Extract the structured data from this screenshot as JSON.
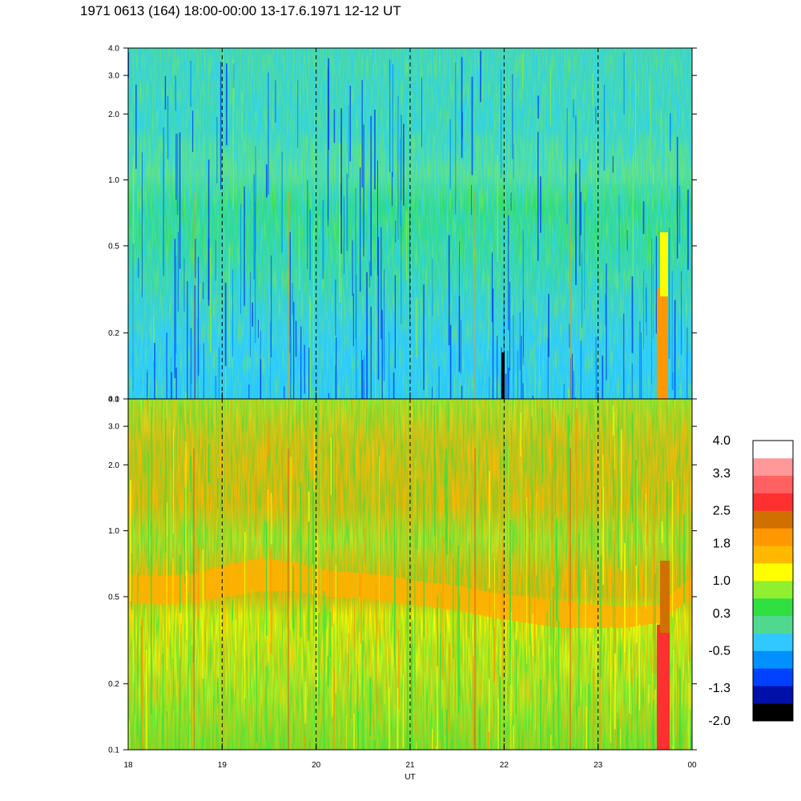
{
  "title": "1971 0613 (164) 18:00-00:00 13-17.6.1971  12-12 UT",
  "chart_data": {
    "type": "heatmap",
    "xlabel": "UT",
    "x_ticks": [
      "18",
      "19",
      "20",
      "21",
      "22",
      "23",
      "00"
    ],
    "x_range": [
      18,
      24
    ],
    "y_scale": "log",
    "y_range": [
      0.1,
      4.0
    ],
    "y_ticks": [
      "0.1",
      "0.2",
      "0.5",
      "1.0",
      "2.0",
      "3.0",
      "4.0"
    ],
    "panels": [
      {
        "name": "upper",
        "mean_level": -0.3
      },
      {
        "name": "lower",
        "mean_level": 1.0
      }
    ],
    "dashed_verticals_at": [
      19,
      20,
      21,
      22,
      23
    ],
    "colorbar": {
      "tick_labels": [
        "4.0",
        "3.3",
        "2.5",
        "1.8",
        "1.0",
        "0.3",
        "-0.5",
        "-1.3",
        "-2.0"
      ],
      "range": [
        -2.0,
        4.0
      ],
      "colors": [
        "#000000",
        "#0010a8",
        "#0040ff",
        "#0090ff",
        "#30c8ff",
        "#50d890",
        "#30e040",
        "#90f030",
        "#ffff00",
        "#ffb800",
        "#ff9800",
        "#d07000",
        "#ff3030",
        "#ff6060",
        "#ff9898",
        "#ffffff"
      ]
    }
  }
}
